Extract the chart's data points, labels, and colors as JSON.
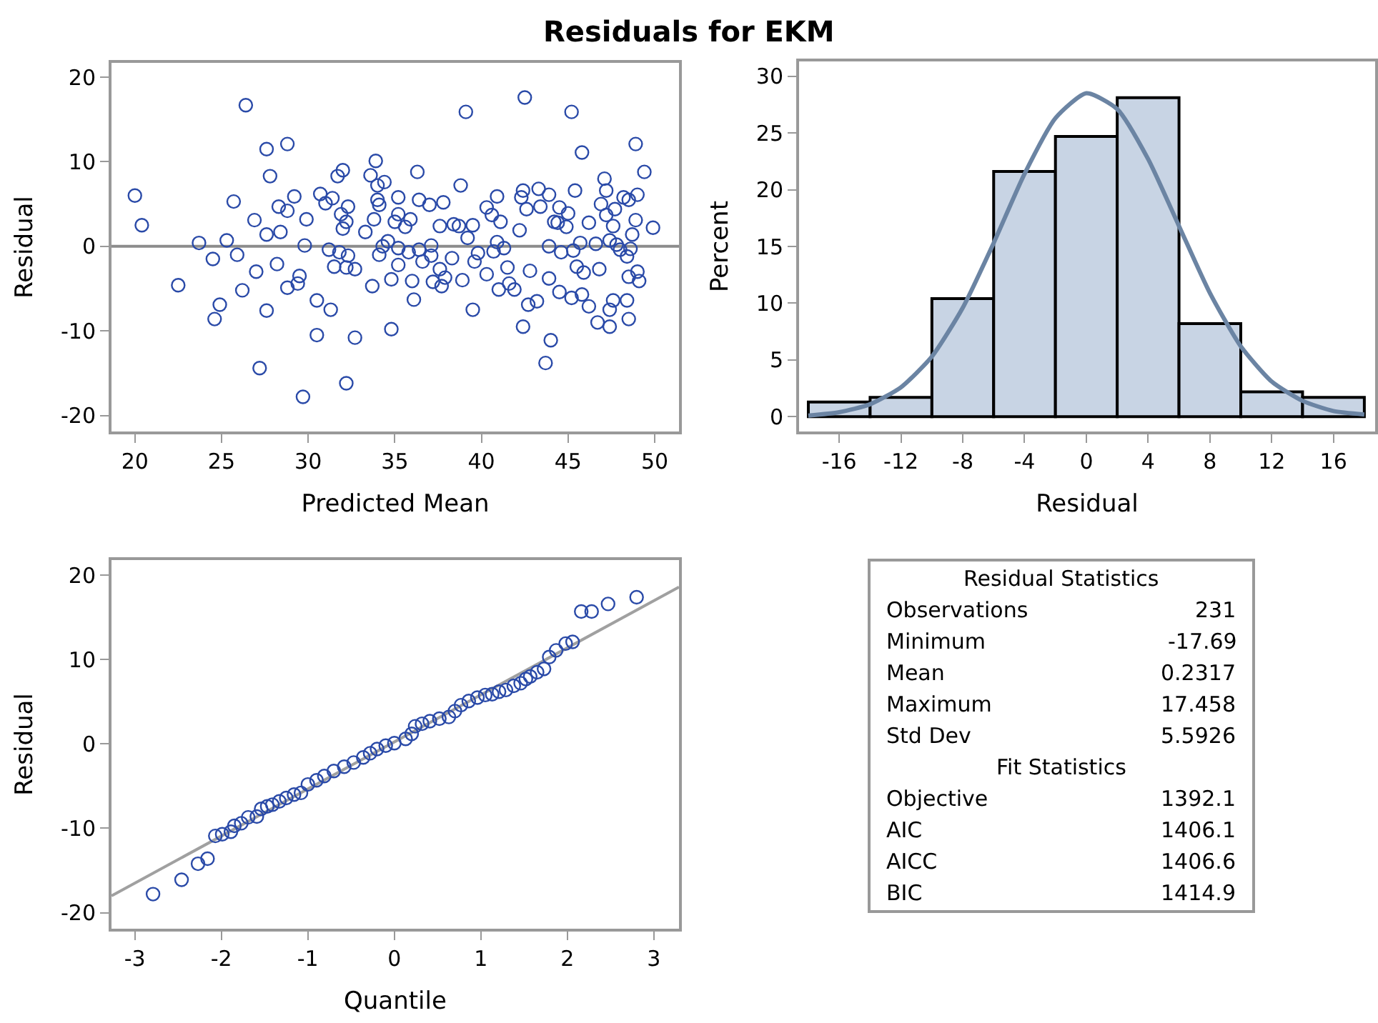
{
  "chart_data": [
    {
      "type": "scatter",
      "title": "Residuals for EKM",
      "xlabel": "Predicted Mean",
      "ylabel": "Residual",
      "color": "#2a4aa8",
      "marker": "circle",
      "grid": false,
      "legend": false,
      "xlim": [
        18.65,
        51.4
      ],
      "ylim": [
        -21.9,
        21.7
      ],
      "xticks": [
        20,
        25,
        30,
        35,
        40,
        45,
        50
      ],
      "yticks": [
        -20,
        -10,
        0,
        10,
        20
      ],
      "ref_lines": [
        {
          "axis": "y",
          "value": 0,
          "color": "#8c8c8c"
        }
      ],
      "x": [
        20.0,
        20.4,
        22.5,
        23.7,
        24.5,
        24.6,
        24.9,
        25.3,
        25.7,
        25.9,
        26.2,
        26.4,
        26.9,
        27.0,
        27.2,
        27.6,
        27.6,
        27.6,
        27.8,
        28.2,
        28.3,
        28.4,
        28.8,
        28.8,
        28.8,
        29.2,
        29.4,
        29.5,
        29.7,
        29.8,
        29.9,
        30.5,
        30.5,
        30.7,
        31.0,
        31.2,
        31.3,
        31.4,
        31.5,
        31.7,
        31.8,
        31.9,
        32.0,
        32.0,
        32.2,
        32.2,
        32.2,
        32.3,
        32.3,
        32.7,
        32.7,
        33.3,
        33.6,
        33.7,
        33.8,
        33.9,
        34.0,
        34.0,
        34.1,
        34.1,
        34.3,
        34.4,
        34.6,
        34.8,
        34.8,
        35.0,
        35.2,
        35.2,
        35.2,
        35.2,
        35.6,
        35.8,
        35.9,
        36.0,
        36.1,
        36.3,
        36.4,
        36.4,
        36.6,
        37.0,
        37.1,
        37.1,
        37.2,
        37.6,
        37.6,
        37.7,
        37.8,
        37.9,
        38.3,
        38.4,
        38.7,
        38.8,
        38.9,
        39.1,
        39.2,
        39.5,
        39.5,
        39.6,
        39.8,
        40.3,
        40.3,
        40.6,
        40.7,
        40.9,
        40.9,
        41.0,
        41.1,
        41.3,
        41.5,
        41.6,
        41.9,
        42.2,
        42.3,
        42.4,
        42.4,
        42.5,
        42.6,
        42.7,
        42.8,
        43.2,
        43.3,
        43.4,
        43.7,
        43.9,
        43.9,
        43.9,
        44.0,
        44.2,
        44.4,
        44.5,
        44.5,
        44.6,
        44.9,
        45.0,
        45.2,
        45.2,
        45.3,
        45.4,
        45.5,
        45.7,
        45.8,
        45.8,
        45.9,
        46.2,
        46.2,
        46.6,
        46.7,
        46.8,
        46.9,
        47.1,
        47.2,
        47.2,
        47.4,
        47.4,
        47.4,
        47.6,
        47.6,
        47.7,
        47.8,
        48.0,
        48.2,
        48.4,
        48.4,
        48.5,
        48.5,
        48.5,
        48.6,
        48.7,
        48.9,
        48.9,
        49.0,
        49.0,
        49.1,
        49.4,
        49.9
      ],
      "values": [
        6.0,
        2.5,
        -4.6,
        0.4,
        -1.5,
        -8.6,
        -6.9,
        0.7,
        5.3,
        -1.0,
        -5.2,
        16.7,
        3.1,
        -3.0,
        -14.4,
        11.5,
        1.4,
        -7.6,
        8.3,
        -2.1,
        4.7,
        1.7,
        12.1,
        -4.9,
        4.2,
        5.9,
        -4.4,
        -3.5,
        -17.8,
        0.1,
        3.2,
        -6.4,
        -10.5,
        6.2,
        5.1,
        -0.4,
        -7.5,
        5.7,
        -2.4,
        8.3,
        -0.7,
        3.8,
        2.1,
        9.0,
        -2.5,
        -16.2,
        2.9,
        4.7,
        -1.1,
        -2.7,
        -10.8,
        1.7,
        8.4,
        -4.7,
        3.2,
        10.1,
        7.2,
        5.5,
        4.9,
        -1.0,
        0.0,
        7.6,
        0.6,
        -9.8,
        -3.9,
        2.9,
        -0.2,
        5.8,
        3.8,
        -2.2,
        2.3,
        -0.7,
        3.2,
        -4.1,
        -6.3,
        8.8,
        5.5,
        -0.4,
        -1.8,
        4.9,
        0.1,
        -1.1,
        -4.2,
        2.4,
        -2.7,
        -4.7,
        5.2,
        -3.7,
        -1.4,
        2.6,
        2.4,
        7.2,
        -4.0,
        15.9,
        1.0,
        -7.5,
        2.5,
        -1.8,
        -0.8,
        -3.3,
        4.6,
        3.7,
        -0.6,
        0.5,
        5.9,
        -5.1,
        2.9,
        -0.2,
        -2.5,
        -4.4,
        -5.1,
        1.9,
        5.8,
        -9.5,
        6.6,
        17.6,
        4.4,
        -6.9,
        -2.9,
        -6.5,
        6.8,
        4.7,
        -13.8,
        0.0,
        6.1,
        -3.8,
        -11.1,
        2.9,
        2.8,
        4.6,
        -5.4,
        -0.7,
        2.3,
        3.9,
        -6.1,
        15.9,
        -0.5,
        6.6,
        -2.4,
        0.4,
        11.1,
        -5.7,
        -3.1,
        2.8,
        -7.1,
        0.3,
        -9.0,
        -2.7,
        5.0,
        8.0,
        6.6,
        3.7,
        0.7,
        -9.5,
        -7.5,
        2.4,
        -6.4,
        4.4,
        0.2,
        -0.4,
        5.8,
        -1.2,
        -6.4,
        -3.6,
        5.5,
        -8.6,
        -0.3,
        1.4,
        3.1,
        12.1,
        -3.0,
        6.1,
        -4.1,
        8.8,
        2.2
      ]
    },
    {
      "type": "histogram",
      "xlabel": "Residual",
      "ylabel": "Percent",
      "grid": false,
      "legend": false,
      "bins": [
        -18,
        -14,
        -10,
        -6,
        -2,
        2,
        6,
        10,
        14,
        18
      ],
      "xlim": [
        -18.6,
        18.7
      ],
      "ylim": [
        -1.3,
        31.3
      ],
      "xticks": [
        -16,
        -12,
        -8,
        -4,
        0,
        4,
        8,
        12,
        16
      ],
      "yticks": [
        0,
        5,
        10,
        15,
        20,
        25,
        30
      ],
      "series": [
        {
          "type": "histogram",
          "color": "#c8d4e4",
          "values": [
            1.3,
            1.7,
            10.4,
            21.6,
            24.7,
            28.1,
            8.2,
            2.2,
            1.7
          ]
        },
        {
          "type": "line",
          "color": "#6b84a3",
          "x": [
            -18,
            -16,
            -14,
            -12,
            -10,
            -8,
            -6,
            -4,
            -2,
            0,
            2,
            4,
            6,
            8,
            10,
            12,
            14,
            16,
            18
          ],
          "values": [
            0.1,
            0.4,
            1.1,
            2.6,
            5.3,
            9.6,
            15.3,
            21.4,
            26.3,
            28.5,
            27.1,
            22.7,
            16.8,
            10.9,
            6.2,
            3.1,
            1.4,
            0.5,
            0.2
          ]
        }
      ]
    },
    {
      "type": "scatter",
      "xlabel": "Quantile",
      "ylabel": "Residual",
      "grid": false,
      "legend": false,
      "xlim": [
        -3.27,
        3.29
      ],
      "ylim": [
        -21.9,
        21.8
      ],
      "xticks": [
        -3,
        -2,
        -1,
        0,
        1,
        2,
        3
      ],
      "yticks": [
        -20,
        -10,
        0,
        10,
        20
      ],
      "series": [
        {
          "type": "line",
          "color": "#a0a0a0",
          "marker": "none",
          "x": [
            -3.27,
            3.29
          ],
          "values": [
            -18.0,
            18.6
          ]
        },
        {
          "type": "scatter",
          "color": "#2a4aa8",
          "marker": "circle",
          "x": [
            -2.79,
            -2.46,
            -2.27,
            -2.16,
            -2.07,
            -1.99,
            -1.89,
            -1.85,
            -1.77,
            -1.69,
            -1.59,
            -1.54,
            -1.47,
            -1.41,
            -1.33,
            -1.25,
            -1.16,
            -1.08,
            -1.0,
            -0.9,
            -0.81,
            -0.7,
            -0.58,
            -0.47,
            -0.36,
            -0.28,
            -0.2,
            -0.1,
            0.0,
            0.13,
            0.2,
            0.24,
            0.32,
            0.41,
            0.52,
            0.63,
            0.7,
            0.77,
            0.86,
            0.96,
            1.05,
            1.13,
            1.21,
            1.29,
            1.38,
            1.46,
            1.52,
            1.57,
            1.65,
            1.73,
            1.79,
            1.87,
            1.98,
            2.06,
            2.16,
            2.28,
            2.47,
            2.8
          ],
          "values": [
            -17.8,
            -16.1,
            -14.2,
            -13.6,
            -10.9,
            -10.7,
            -10.4,
            -9.7,
            -9.4,
            -8.7,
            -8.6,
            -7.7,
            -7.4,
            -7.2,
            -6.8,
            -6.4,
            -6.0,
            -5.8,
            -4.8,
            -4.3,
            -3.8,
            -3.2,
            -2.7,
            -2.2,
            -1.6,
            -1.1,
            -0.6,
            -0.2,
            0.1,
            0.6,
            1.2,
            2.1,
            2.4,
            2.7,
            3.0,
            3.2,
            3.9,
            4.6,
            5.1,
            5.5,
            5.8,
            5.9,
            6.2,
            6.4,
            6.9,
            7.2,
            7.7,
            8.0,
            8.5,
            8.9,
            10.3,
            11.1,
            11.9,
            12.1,
            15.7,
            15.7,
            16.6,
            17.4
          ]
        }
      ]
    },
    {
      "type": "other",
      "categories": [
        "Residual Statistics",
        "Observations",
        "Minimum",
        "Mean",
        "Maximum",
        "Std Dev",
        "Fit Statistics",
        "Objective",
        "AIC",
        "AICC",
        "BIC"
      ],
      "value_labels": [
        null,
        "231",
        "-17.69",
        "0.2317",
        "17.458",
        "5.5926",
        null,
        "1392.1",
        "1406.1",
        "1406.6",
        "1414.9"
      ]
    }
  ]
}
